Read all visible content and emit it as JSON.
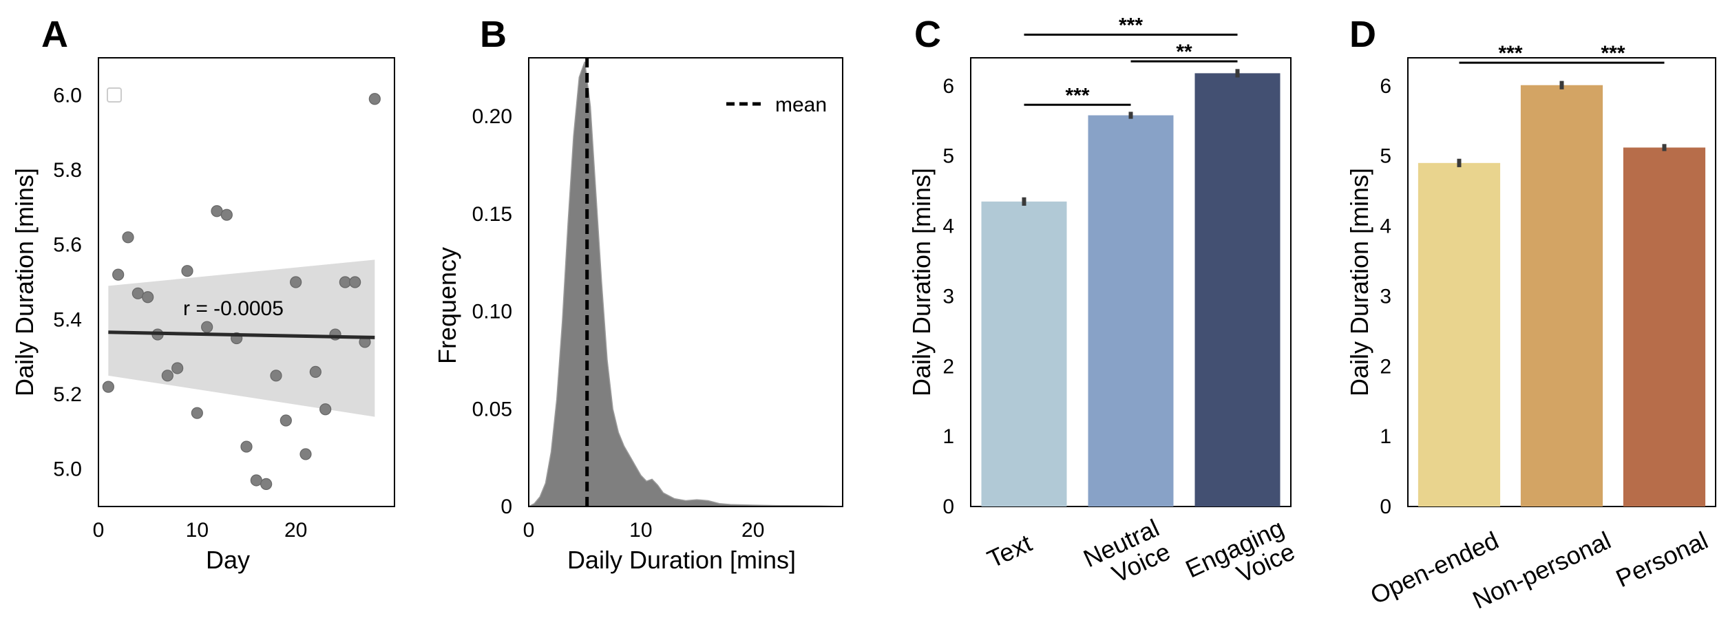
{
  "colors": {
    "scatter_point": "#7f7f7f",
    "ci_band": "#dcdcdc",
    "regression_line": "#2a2a2a",
    "density_fill": "#7f7f7f",
    "condition_text": "#b1c9d6",
    "condition_neutral_voice": "#88a2c7",
    "condition_engaging_voice": "#435072",
    "prompt_open_ended": "#e9d48e",
    "prompt_non_personal": "#d3a464",
    "prompt_personal": "#b76d4a",
    "error_bar": "#3a3a3a"
  },
  "chart_data": [
    {
      "panel": "A",
      "type": "scatter",
      "xlabel": "Day",
      "ylabel": "Daily Duration [mins]",
      "xlim": [
        0,
        30
      ],
      "ylim": [
        4.9,
        6.1
      ],
      "xticks": [
        0,
        10,
        20
      ],
      "yticks": [
        "5.0",
        "5.2",
        "5.4",
        "5.6",
        "5.8",
        "6.0"
      ],
      "annotation": "r = -0.0005",
      "legend": "empty box, top-left",
      "points": [
        {
          "x": 1,
          "y": 5.22
        },
        {
          "x": 2,
          "y": 5.52
        },
        {
          "x": 3,
          "y": 5.62
        },
        {
          "x": 4,
          "y": 5.47
        },
        {
          "x": 5,
          "y": 5.46
        },
        {
          "x": 6,
          "y": 5.36
        },
        {
          "x": 7,
          "y": 5.25
        },
        {
          "x": 8,
          "y": 5.27
        },
        {
          "x": 9,
          "y": 5.53
        },
        {
          "x": 10,
          "y": 5.15
        },
        {
          "x": 11,
          "y": 5.38
        },
        {
          "x": 12,
          "y": 5.69
        },
        {
          "x": 13,
          "y": 5.68
        },
        {
          "x": 14,
          "y": 5.35
        },
        {
          "x": 15,
          "y": 5.06
        },
        {
          "x": 16,
          "y": 4.97
        },
        {
          "x": 17,
          "y": 4.96
        },
        {
          "x": 18,
          "y": 5.25
        },
        {
          "x": 19,
          "y": 5.13
        },
        {
          "x": 20,
          "y": 5.5
        },
        {
          "x": 21,
          "y": 5.04
        },
        {
          "x": 22,
          "y": 5.26
        },
        {
          "x": 23,
          "y": 5.16
        },
        {
          "x": 24,
          "y": 5.36
        },
        {
          "x": 25,
          "y": 5.5
        },
        {
          "x": 26,
          "y": 5.5
        },
        {
          "x": 27,
          "y": 5.34
        },
        {
          "x": 28,
          "y": 5.99
        }
      ],
      "regression": {
        "x": [
          1,
          28
        ],
        "y": [
          5.366,
          5.352
        ]
      },
      "ci_band": {
        "x": [
          1,
          28
        ],
        "upper": [
          5.49,
          5.56
        ],
        "lower": [
          5.25,
          5.14
        ]
      }
    },
    {
      "panel": "B",
      "type": "area",
      "xlabel": "Daily Duration [mins]",
      "ylabel": "Frequency",
      "xlim": [
        0,
        28
      ],
      "ylim": [
        0,
        0.23
      ],
      "xticks": [
        0,
        10,
        20
      ],
      "yticks": [
        "0",
        "0.05",
        "0.10",
        "0.15",
        "0.20"
      ],
      "mean": 5.2,
      "legend_label": "mean",
      "legend_position": "top-right",
      "density": {
        "x": [
          0,
          0.5,
          1,
          1.5,
          2,
          2.5,
          3,
          3.5,
          4,
          4.5,
          5,
          5.5,
          6,
          6.5,
          7,
          7.5,
          8,
          8.5,
          9,
          9.5,
          10,
          10.5,
          11,
          11.5,
          12,
          13,
          14,
          15,
          16,
          17,
          18,
          20,
          22,
          24,
          26,
          28
        ],
        "y": [
          0.0,
          0.0015,
          0.005,
          0.012,
          0.028,
          0.055,
          0.095,
          0.145,
          0.19,
          0.22,
          0.228,
          0.205,
          0.16,
          0.115,
          0.075,
          0.05,
          0.038,
          0.031,
          0.026,
          0.021,
          0.016,
          0.013,
          0.014,
          0.011,
          0.007,
          0.004,
          0.003,
          0.0035,
          0.003,
          0.0015,
          0.001,
          0.0007,
          0.0005,
          0.0004,
          0.0003,
          0.0
        ]
      }
    },
    {
      "panel": "C",
      "type": "bar",
      "xlabel": "",
      "ylabel": "Daily Duration [mins]",
      "ylim": [
        0,
        6.4
      ],
      "yticks": [
        "0",
        "1",
        "2",
        "3",
        "4",
        "5",
        "6"
      ],
      "categories": [
        "Text",
        "Neutral Voice",
        "Engaging Voice"
      ],
      "category_lines": [
        [
          "Text"
        ],
        [
          "Neutral",
          "Voice"
        ],
        [
          "Engaging",
          "Voice"
        ]
      ],
      "values": [
        4.35,
        5.58,
        6.18
      ],
      "errors": [
        0.06,
        0.05,
        0.06
      ],
      "significance": [
        {
          "pair": [
            0,
            1
          ],
          "label": "***",
          "y": 5.73
        },
        {
          "pair": [
            1,
            2
          ],
          "label": "**",
          "y": 6.35
        },
        {
          "pair": [
            0,
            2
          ],
          "label": "***",
          "y": 6.73
        }
      ]
    },
    {
      "panel": "D",
      "type": "bar",
      "xlabel": "",
      "ylabel": "Daily Duration [mins]",
      "ylim": [
        0,
        6.4
      ],
      "yticks": [
        "0",
        "1",
        "2",
        "3",
        "4",
        "5",
        "6"
      ],
      "categories": [
        "Open-ended",
        "Non-personal",
        "Personal"
      ],
      "category_lines": [
        [
          "Open-ended"
        ],
        [
          "Non-personal"
        ],
        [
          "Personal"
        ]
      ],
      "values": [
        4.9,
        6.01,
        5.12
      ],
      "errors": [
        0.06,
        0.06,
        0.05
      ],
      "significance": [
        {
          "pair": [
            0,
            1
          ],
          "label": "***",
          "y": 6.33
        },
        {
          "pair": [
            1,
            2
          ],
          "label": "***",
          "y": 6.33
        }
      ]
    }
  ]
}
